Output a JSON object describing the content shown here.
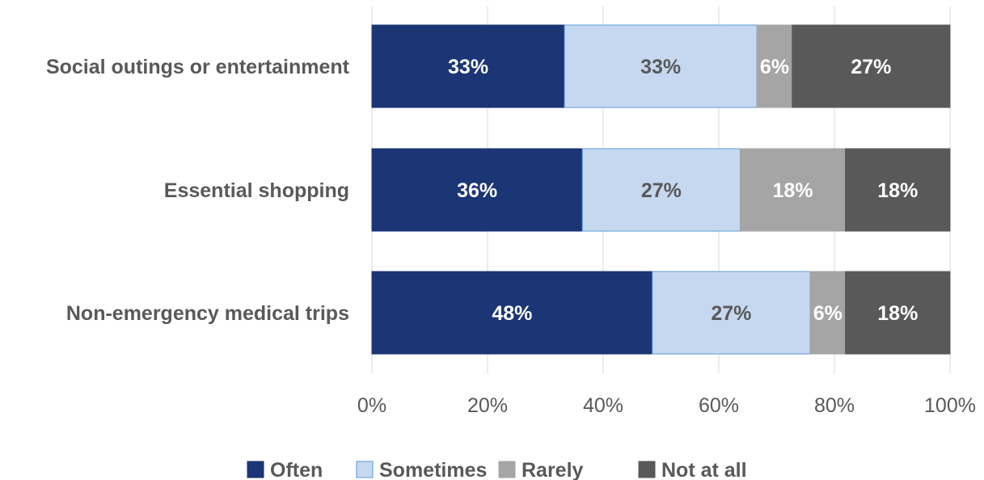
{
  "chart_data": {
    "type": "bar",
    "orientation": "horizontal",
    "stacked": true,
    "title": "",
    "xlabel": "",
    "ylabel": "",
    "xlim": [
      0,
      100
    ],
    "x_ticks": [
      "0%",
      "20%",
      "40%",
      "60%",
      "80%",
      "100%"
    ],
    "grid": "vertical",
    "legend_position": "bottom",
    "categories": [
      "Social outings or entertainment",
      "Essential shopping",
      "Non-emergency medical trips"
    ],
    "series": [
      {
        "name": "Often",
        "color": "#1b3575",
        "label_color": "#ffffff",
        "values": [
          33.3,
          36.4,
          48.5
        ],
        "labels": [
          "33%",
          "36%",
          "48%"
        ]
      },
      {
        "name": "Sometimes",
        "color": "#c6d8f0",
        "label_color": "#595959",
        "values": [
          33.3,
          27.3,
          27.3
        ],
        "labels": [
          "33%",
          "27%",
          "27%"
        ]
      },
      {
        "name": "Rarely",
        "color": "#a5a5a5",
        "label_color": "#ffffff",
        "values": [
          6.1,
          18.2,
          6.1
        ],
        "labels": [
          "6%",
          "18%",
          "6%"
        ]
      },
      {
        "name": "Not at all",
        "color": "#595959",
        "label_color": "#ffffff",
        "values": [
          27.3,
          18.1,
          18.1
        ],
        "labels": [
          "27%",
          "18%",
          "18%"
        ]
      }
    ]
  }
}
